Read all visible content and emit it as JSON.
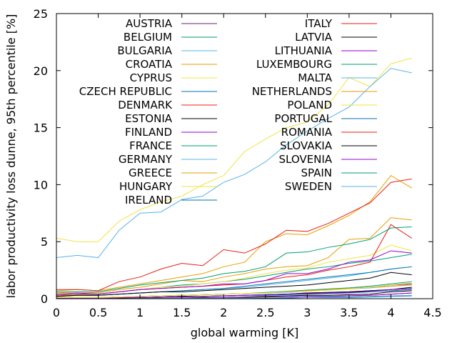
{
  "chart_data": {
    "type": "line",
    "xlabel": "global warming [K]",
    "ylabel": "labor productivity loss dunne, 95th percentile [%]",
    "xlim": [
      0,
      4.5
    ],
    "ylim": [
      0,
      25
    ],
    "xticks": [
      0,
      0.5,
      1,
      1.5,
      2,
      2.5,
      3,
      3.5,
      4,
      4.5
    ],
    "xtick_labels": [
      "0",
      "0.5",
      "1",
      "1.5",
      "2",
      "2.5",
      "3",
      "3.5",
      "4",
      "4.5"
    ],
    "yticks": [
      0,
      5,
      10,
      15,
      20,
      25
    ],
    "ytick_labels": [
      "0",
      "5",
      "10",
      "15",
      "20",
      "25"
    ],
    "grid": false,
    "legend_position": "top-left, two columns",
    "x": [
      0,
      0.25,
      0.5,
      0.75,
      1,
      1.25,
      1.5,
      1.75,
      2,
      2.25,
      2.5,
      2.75,
      3,
      3.25,
      3.5,
      3.75,
      4,
      4.25
    ],
    "series": [
      {
        "name": "AUSTRIA",
        "color": "#6b1d74",
        "values": [
          0.1,
          0.1,
          0.1,
          0.15,
          0.2,
          0.25,
          0.3,
          0.35,
          0.4,
          0.45,
          0.5,
          0.6,
          0.7,
          0.8,
          0.9,
          1.0,
          1.2,
          1.3
        ]
      },
      {
        "name": "BELGIUM",
        "color": "#009e73",
        "values": [
          0.05,
          0.05,
          0.05,
          0.1,
          0.1,
          0.15,
          0.2,
          0.2,
          0.25,
          0.3,
          0.35,
          0.4,
          0.5,
          0.55,
          0.6,
          0.7,
          0.8,
          0.9
        ]
      },
      {
        "name": "BULGARIA",
        "color": "#56b4e9",
        "values": [
          0.3,
          0.3,
          0.3,
          0.4,
          0.5,
          0.6,
          0.7,
          0.8,
          0.9,
          1.0,
          1.2,
          1.4,
          1.6,
          1.8,
          2.0,
          2.3,
          2.6,
          2.8
        ]
      },
      {
        "name": "CROATIA",
        "color": "#e69f00",
        "values": [
          0.5,
          0.6,
          0.5,
          0.8,
          1.0,
          1.3,
          1.6,
          1.5,
          1.9,
          2.2,
          2.6,
          2.8,
          2.9,
          3.6,
          5.2,
          5.3,
          7.1,
          6.9
        ]
      },
      {
        "name": "CYPRUS",
        "color": "#f0e442",
        "values": [
          5.3,
          5.0,
          5.0,
          6.8,
          7.8,
          8.5,
          9.0,
          10.0,
          10.8,
          12.9,
          14.0,
          15.0,
          15.5,
          17.0,
          19.4,
          18.6,
          20.6,
          21.1
        ]
      },
      {
        "name": "CZECH REPUBLIC",
        "color": "#0072b2",
        "values": [
          0.05,
          0.05,
          0.05,
          0.1,
          0.1,
          0.15,
          0.2,
          0.2,
          0.25,
          0.3,
          0.3,
          0.35,
          0.4,
          0.45,
          0.5,
          0.6,
          0.7,
          0.8
        ]
      },
      {
        "name": "DENMARK",
        "color": "#e51e10",
        "values": [
          0.0,
          0.0,
          0.0,
          0.02,
          0.05,
          0.05,
          0.05,
          0.1,
          0.1,
          0.1,
          0.15,
          0.15,
          0.2,
          0.2,
          0.25,
          0.3,
          0.4,
          0.5
        ]
      },
      {
        "name": "ESTONIA",
        "color": "#000000",
        "values": [
          0.0,
          0.0,
          0.0,
          0.02,
          0.05,
          0.05,
          0.05,
          0.1,
          0.1,
          0.15,
          0.2,
          0.25,
          0.3,
          0.3,
          0.35,
          0.4,
          0.6,
          0.7
        ]
      },
      {
        "name": "FINLAND",
        "color": "#9400d3",
        "values": [
          0.0,
          0.0,
          0.0,
          0.0,
          0.02,
          0.02,
          0.05,
          0.05,
          0.1,
          0.1,
          0.1,
          0.15,
          0.2,
          0.2,
          0.25,
          0.3,
          0.4,
          0.5
        ]
      },
      {
        "name": "FRANCE",
        "color": "#009e73",
        "values": [
          0.3,
          0.4,
          0.4,
          0.6,
          0.8,
          1.0,
          1.2,
          1.3,
          1.5,
          1.7,
          2.0,
          2.3,
          2.6,
          2.8,
          3.1,
          3.3,
          3.6,
          3.9
        ]
      },
      {
        "name": "GERMANY",
        "color": "#56b4e9",
        "values": [
          0.1,
          0.1,
          0.1,
          0.15,
          0.2,
          0.25,
          0.3,
          0.35,
          0.4,
          0.45,
          0.5,
          0.55,
          0.65,
          0.75,
          0.85,
          0.95,
          1.1,
          1.2
        ]
      },
      {
        "name": "GREECE",
        "color": "#e69f00",
        "values": [
          0.7,
          0.8,
          0.7,
          1.0,
          1.3,
          1.6,
          1.9,
          2.2,
          2.8,
          3.2,
          5.0,
          5.7,
          5.6,
          6.4,
          7.3,
          8.5,
          10.8,
          9.7
        ]
      },
      {
        "name": "HUNGARY",
        "color": "#f0e442",
        "values": [
          0.4,
          0.4,
          0.4,
          0.6,
          0.8,
          1.0,
          1.1,
          1.3,
          1.5,
          1.8,
          2.2,
          2.5,
          2.7,
          3.2,
          3.5,
          3.8,
          4.7,
          4.2
        ]
      },
      {
        "name": "IRELAND",
        "color": "#0072b2",
        "values": [
          0.0,
          0.0,
          0.0,
          0.0,
          0.0,
          0.02,
          0.02,
          0.02,
          0.05,
          0.05,
          0.05,
          0.05,
          0.1,
          0.1,
          0.1,
          0.15,
          0.2,
          0.25
        ]
      },
      {
        "name": "ITALY",
        "color": "#e51e10",
        "values": [
          0.8,
          0.8,
          0.7,
          1.5,
          1.9,
          2.6,
          3.1,
          2.9,
          4.3,
          4.0,
          4.8,
          6.0,
          5.9,
          6.6,
          7.5,
          8.4,
          10.2,
          10.5
        ]
      },
      {
        "name": "LATVIA",
        "color": "#000000",
        "values": [
          0.05,
          0.05,
          0.05,
          0.1,
          0.1,
          0.15,
          0.2,
          0.2,
          0.25,
          0.3,
          0.35,
          0.4,
          0.5,
          0.55,
          0.6,
          0.7,
          0.8,
          1.0
        ]
      },
      {
        "name": "LITHUANIA",
        "color": "#9400d3",
        "values": [
          0.05,
          0.05,
          0.05,
          0.1,
          0.1,
          0.15,
          0.15,
          0.2,
          0.25,
          0.3,
          0.35,
          0.4,
          0.45,
          0.5,
          0.55,
          0.65,
          0.8,
          0.9
        ]
      },
      {
        "name": "LUXEMBOURG",
        "color": "#009e73",
        "values": [
          0.1,
          0.1,
          0.1,
          0.15,
          0.2,
          0.25,
          0.3,
          0.35,
          0.4,
          0.45,
          0.55,
          0.65,
          0.75,
          0.85,
          0.95,
          1.1,
          1.3,
          1.5
        ]
      },
      {
        "name": "MALTA",
        "color": "#56b4e9",
        "values": [
          3.6,
          3.8,
          3.6,
          6.0,
          7.5,
          7.6,
          8.7,
          9.0,
          10.2,
          10.9,
          12.0,
          13.5,
          14.7,
          15.8,
          16.8,
          18.6,
          20.2,
          19.8
        ]
      },
      {
        "name": "NETHERLANDS",
        "color": "#e69f00",
        "values": [
          0.1,
          0.1,
          0.1,
          0.15,
          0.2,
          0.25,
          0.3,
          0.35,
          0.4,
          0.45,
          0.5,
          0.6,
          0.7,
          0.8,
          0.9,
          1.0,
          1.1,
          1.2
        ]
      },
      {
        "name": "POLAND",
        "color": "#f0e442",
        "values": [
          0.1,
          0.1,
          0.1,
          0.15,
          0.2,
          0.25,
          0.3,
          0.35,
          0.4,
          0.45,
          0.5,
          0.6,
          0.65,
          0.75,
          0.85,
          1.0,
          1.2,
          1.4
        ]
      },
      {
        "name": "PORTUGAL",
        "color": "#0072b2",
        "values": [
          0.2,
          0.3,
          0.3,
          0.4,
          0.5,
          0.6,
          0.7,
          0.8,
          0.9,
          1.1,
          1.3,
          1.5,
          1.7,
          1.9,
          2.1,
          2.3,
          2.6,
          2.8
        ]
      },
      {
        "name": "ROMANIA",
        "color": "#e51e10",
        "values": [
          0.3,
          0.4,
          0.4,
          0.6,
          0.8,
          0.9,
          1.0,
          1.1,
          1.2,
          1.3,
          1.6,
          1.9,
          2.1,
          2.5,
          2.8,
          3.2,
          6.5,
          5.3
        ]
      },
      {
        "name": "SLOVAKIA",
        "color": "#000000",
        "values": [
          0.2,
          0.3,
          0.3,
          0.4,
          0.5,
          0.6,
          0.6,
          0.7,
          0.8,
          0.9,
          1.0,
          1.1,
          1.2,
          1.4,
          1.6,
          1.8,
          2.3,
          2.1
        ]
      },
      {
        "name": "SLOVENIA",
        "color": "#9400d3",
        "values": [
          0.4,
          0.5,
          0.4,
          0.6,
          0.8,
          0.9,
          1.0,
          1.1,
          1.3,
          1.3,
          1.6,
          2.2,
          2.2,
          2.6,
          3.2,
          3.4,
          4.2,
          4.0
        ]
      },
      {
        "name": "SPAIN",
        "color": "#009e73",
        "values": [
          0.6,
          0.6,
          0.6,
          0.9,
          1.2,
          1.4,
          1.6,
          1.8,
          2.2,
          2.4,
          2.8,
          4.0,
          4.1,
          4.5,
          4.8,
          5.2,
          6.2,
          6.3
        ]
      },
      {
        "name": "SWEDEN",
        "color": "#56b4e9",
        "values": [
          0.0,
          0.0,
          0.0,
          0.0,
          0.02,
          0.02,
          0.02,
          0.05,
          0.05,
          0.05,
          0.1,
          0.1,
          0.1,
          0.15,
          0.15,
          0.2,
          0.25,
          0.3
        ]
      }
    ]
  }
}
